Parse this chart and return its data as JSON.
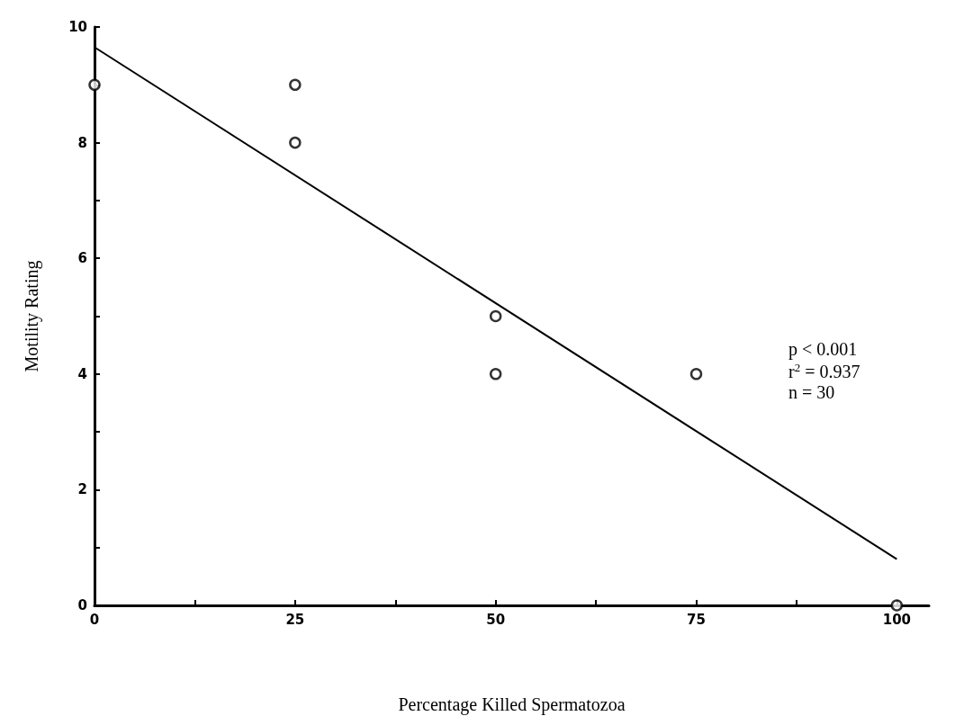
{
  "chart_data": {
    "type": "scatter",
    "xlabel": "Percentage Killed Spermatozoa",
    "ylabel": "Motility Rating",
    "series": [
      {
        "color": "#000000",
        "marker": "circle",
        "x": [
          0,
          25,
          25,
          50,
          50,
          75,
          100
        ],
        "values": [
          9,
          9,
          8,
          5,
          4,
          4,
          0
        ]
      },
      {
        "type": "line",
        "color": "#000000",
        "marker": "none",
        "line_style": "solid",
        "x": [
          0,
          100
        ],
        "values": [
          9.65,
          0.8
        ]
      }
    ],
    "xlim": [
      0,
      104
    ],
    "ylim": [
      0,
      10
    ],
    "xticks": [
      0,
      {
        "value": 12.5,
        "label": null
      },
      25,
      {
        "value": 37.5,
        "label": null
      },
      50,
      {
        "value": 62.5,
        "label": null
      },
      75,
      {
        "value": 87.5,
        "label": null
      },
      100
    ],
    "yticks": [
      0,
      {
        "value": 1,
        "label": null
      },
      2,
      {
        "value": 3,
        "label": null
      },
      4,
      {
        "value": 5,
        "label": null
      },
      6,
      {
        "value": 7,
        "label": null
      },
      8,
      {
        "value": 9,
        "label": null
      },
      10
    ],
    "annotations": [
      "p < 0.001",
      "r$^{2}$ = 0.937",
      "n = 30"
    ],
    "grid": false
  }
}
